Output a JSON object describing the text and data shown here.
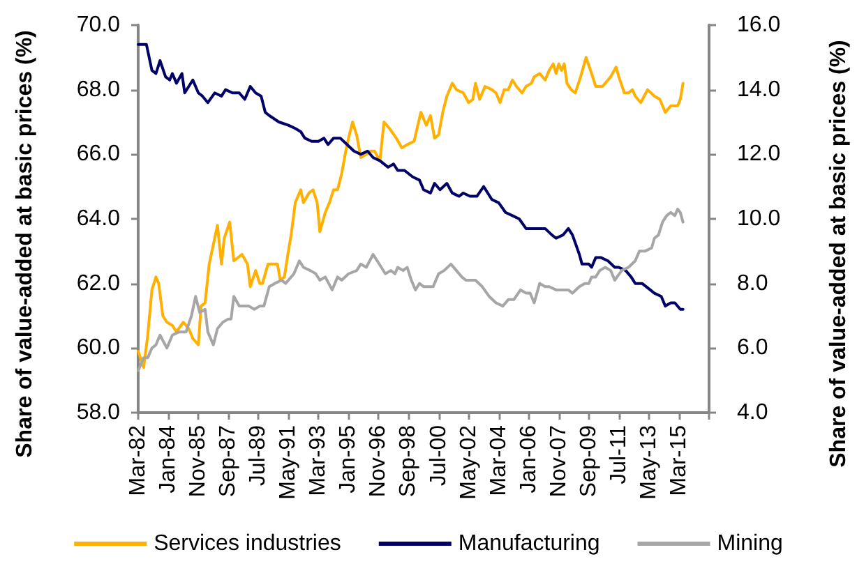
{
  "chart_data": {
    "type": "line",
    "ylabel": "Share of value-added at basic prices (%)",
    "y2label": "Share of value-added at basic prices (%)",
    "xlim": [
      "1982-03",
      "2017-01"
    ],
    "xticks": [
      {
        "value": "1982-03",
        "label": "Mar-82"
      },
      {
        "value": "1984-01",
        "label": "Jan-84"
      },
      {
        "value": "1985-11",
        "label": "Nov-85"
      },
      {
        "value": "1987-09",
        "label": "Sep-87"
      },
      {
        "value": "1989-07",
        "label": "Jul-89"
      },
      {
        "value": "1991-05",
        "label": "May-91"
      },
      {
        "value": "1993-03",
        "label": "Mar-93"
      },
      {
        "value": "1995-01",
        "label": "Jan-95"
      },
      {
        "value": "1996-11",
        "label": "Nov-96"
      },
      {
        "value": "1998-09",
        "label": "Sep-98"
      },
      {
        "value": "2000-07",
        "label": "Jul-00"
      },
      {
        "value": "2002-05",
        "label": "May-02"
      },
      {
        "value": "2004-03",
        "label": "Mar-04"
      },
      {
        "value": "2006-01",
        "label": "Jan-06"
      },
      {
        "value": "2007-11",
        "label": "Nov-07"
      },
      {
        "value": "2009-09",
        "label": "Sep-09"
      },
      {
        "value": "2011-07",
        "label": "Jul-11"
      },
      {
        "value": "2013-05",
        "label": "May-13"
      },
      {
        "value": "2015-03",
        "label": "Mar-15"
      },
      {
        "value": "2017-01",
        "label": null
      }
    ],
    "ylim": [
      58,
      70
    ],
    "yticks": [
      {
        "value": 58,
        "label": "58.0"
      },
      {
        "value": 60,
        "label": "60.0"
      },
      {
        "value": 62,
        "label": "62.0"
      },
      {
        "value": 64,
        "label": "64.0"
      },
      {
        "value": 66,
        "label": "66.0"
      },
      {
        "value": 68,
        "label": "68.0"
      },
      {
        "value": 70,
        "label": "70.0"
      }
    ],
    "y2lim": [
      4,
      16
    ],
    "y2ticks": [
      {
        "value": 4,
        "label": "4.0"
      },
      {
        "value": 6,
        "label": "6.0"
      },
      {
        "value": 8,
        "label": "8.0"
      },
      {
        "value": 10,
        "label": "10.0"
      },
      {
        "value": 12,
        "label": "12.0"
      },
      {
        "value": 14,
        "label": "14.0"
      },
      {
        "value": 16,
        "label": "16.0"
      }
    ],
    "legend": "bottom",
    "series": [
      {
        "name": "Services industries",
        "color": "#ffb000",
        "x": [
          "1982-03",
          "1982-07",
          "1982-10",
          "1983-01",
          "1983-04",
          "1983-06",
          "1983-09",
          "1983-12",
          "1984-04",
          "1984-07",
          "1984-12",
          "1985-04",
          "1985-07",
          "1985-11",
          "1986-01",
          "1986-04",
          "1986-07",
          "1986-10",
          "1987-01",
          "1987-04",
          "1987-06",
          "1987-10",
          "1988-01",
          "1988-07",
          "1988-11",
          "1989-01",
          "1989-05",
          "1989-08",
          "1989-10",
          "1990-02",
          "1990-05",
          "1990-09",
          "1990-11",
          "1991-02",
          "1991-05",
          "1991-07",
          "1991-10",
          "1992-02",
          "1992-04",
          "1992-08",
          "1992-11",
          "1993-02",
          "1993-04",
          "1993-08",
          "1993-11",
          "1994-02",
          "1994-05",
          "1994-08",
          "1994-11",
          "1995-01",
          "1995-04",
          "1995-07",
          "1995-10",
          "1996-02",
          "1996-05",
          "1996-08",
          "1996-12",
          "1997-03",
          "1997-07",
          "1997-12",
          "1998-04",
          "1998-08",
          "1999-01",
          "1999-06",
          "1999-10",
          "2000-01",
          "2000-04",
          "2000-07",
          "2000-10",
          "2001-01",
          "2001-05",
          "2001-08",
          "2002-01",
          "2002-05",
          "2002-08",
          "2002-10",
          "2003-01",
          "2003-05",
          "2003-10",
          "2004-01",
          "2004-04",
          "2004-07",
          "2004-10",
          "2005-01",
          "2005-04",
          "2005-08",
          "2005-11",
          "2006-03",
          "2006-05",
          "2006-09",
          "2007-01",
          "2007-04",
          "2007-07",
          "2007-09",
          "2007-11",
          "2008-01",
          "2008-03",
          "2008-05",
          "2008-08",
          "2008-11",
          "2009-03",
          "2009-07",
          "2009-11",
          "2010-02",
          "2010-07",
          "2011-01",
          "2011-05",
          "2011-07",
          "2011-11",
          "2012-02",
          "2012-05",
          "2012-07",
          "2012-11",
          "2013-04",
          "2013-09",
          "2014-01",
          "2014-05",
          "2014-09",
          "2015-02",
          "2015-04",
          "2015-06"
        ],
        "values": [
          59.9,
          59.4,
          60.4,
          61.8,
          62.2,
          62.0,
          61.0,
          60.8,
          60.7,
          60.5,
          60.8,
          60.6,
          60.3,
          60.1,
          61.3,
          61.4,
          62.6,
          63.2,
          63.8,
          62.6,
          63.4,
          63.9,
          62.7,
          62.9,
          62.6,
          61.9,
          62.4,
          62.0,
          62.0,
          62.6,
          62.6,
          62.6,
          62.1,
          62.2,
          63.0,
          63.5,
          64.5,
          64.9,
          64.5,
          64.8,
          64.9,
          64.5,
          63.6,
          64.2,
          64.5,
          64.9,
          64.9,
          65.4,
          66.1,
          66.5,
          67.0,
          66.6,
          65.9,
          66.0,
          66.1,
          66.1,
          65.8,
          67.0,
          66.8,
          66.5,
          66.2,
          66.3,
          66.4,
          67.3,
          66.9,
          67.2,
          66.5,
          66.6,
          67.3,
          67.8,
          68.2,
          68.0,
          67.9,
          67.6,
          67.7,
          68.2,
          67.7,
          68.1,
          68.0,
          67.9,
          67.6,
          68.0,
          68.0,
          68.3,
          68.1,
          67.9,
          68.1,
          68.2,
          68.4,
          68.5,
          68.3,
          68.6,
          68.8,
          68.5,
          68.8,
          68.6,
          68.8,
          68.2,
          68.0,
          67.9,
          68.4,
          69.0,
          68.5,
          68.1,
          68.1,
          68.4,
          68.7,
          68.4,
          67.9,
          67.9,
          68.0,
          67.8,
          67.6,
          68.0,
          67.8,
          67.7,
          67.3,
          67.5,
          67.5,
          67.7,
          68.2
        ]
      },
      {
        "name": "Manufacturing",
        "color": "#000066",
        "x": [
          "1982-03",
          "1982-09",
          "1983-01",
          "1983-04",
          "1983-07",
          "1983-11",
          "1984-02",
          "1984-04",
          "1984-07",
          "1984-11",
          "1985-01",
          "1985-07",
          "1985-11",
          "1986-02",
          "1986-06",
          "1986-11",
          "1987-04",
          "1987-07",
          "1987-12",
          "1988-05",
          "1988-09",
          "1989-01",
          "1989-05",
          "1989-09",
          "1989-12",
          "1990-03",
          "1990-10",
          "1991-05",
          "1991-10",
          "1992-02",
          "1992-05",
          "1992-10",
          "1993-03",
          "1993-07",
          "1993-10",
          "1994-02",
          "1994-07",
          "1994-12",
          "1995-05",
          "1995-10",
          "1996-03",
          "1996-07",
          "1996-12",
          "1997-06",
          "1997-10",
          "1998-01",
          "1998-06",
          "1998-12",
          "1999-05",
          "1999-08",
          "2000-01",
          "2000-04",
          "2000-08",
          "2001-01",
          "2001-05",
          "2001-10",
          "2002-01",
          "2002-06",
          "2002-11",
          "2003-04",
          "2003-10",
          "2004-03",
          "2004-08",
          "2005-01",
          "2005-06",
          "2005-11",
          "2006-04",
          "2006-09",
          "2007-01",
          "2007-06",
          "2007-09",
          "2008-02",
          "2008-06",
          "2008-09",
          "2009-02",
          "2009-04",
          "2009-09",
          "2009-11",
          "2010-02",
          "2010-06",
          "2010-11",
          "2011-04",
          "2011-07",
          "2011-12",
          "2012-04",
          "2012-07",
          "2012-12",
          "2013-06",
          "2013-09",
          "2014-02",
          "2014-05",
          "2014-09",
          "2014-12",
          "2015-04",
          "2015-06"
        ],
        "values": [
          69.4,
          69.4,
          68.6,
          68.5,
          68.9,
          68.4,
          68.3,
          68.5,
          68.2,
          68.5,
          67.9,
          68.3,
          67.9,
          67.8,
          67.6,
          67.9,
          67.8,
          68.0,
          67.9,
          67.9,
          67.7,
          68.1,
          67.9,
          67.8,
          67.3,
          67.2,
          67.0,
          66.9,
          66.8,
          66.7,
          66.5,
          66.4,
          66.4,
          66.5,
          66.3,
          66.5,
          66.5,
          66.3,
          66.1,
          66.0,
          66.1,
          65.9,
          65.8,
          65.6,
          65.7,
          65.5,
          65.5,
          65.3,
          65.2,
          64.9,
          64.8,
          65.1,
          64.9,
          65.1,
          64.8,
          64.7,
          64.8,
          64.7,
          64.7,
          65.0,
          64.6,
          64.5,
          64.2,
          64.1,
          64.0,
          63.7,
          63.7,
          63.7,
          63.7,
          63.5,
          63.4,
          63.5,
          63.7,
          63.5,
          62.9,
          62.6,
          62.6,
          62.5,
          62.8,
          62.8,
          62.7,
          62.5,
          62.5,
          62.4,
          62.2,
          62.0,
          62.0,
          61.8,
          61.7,
          61.6,
          61.3,
          61.4,
          61.4,
          61.2,
          61.2
        ]
      },
      {
        "name": "Mining",
        "color": "#a6a6a6",
        "axis": "y2",
        "x": [
          "1982-03",
          "1982-07",
          "1982-10",
          "1983-01",
          "1983-04",
          "1983-07",
          "1983-12",
          "1984-04",
          "1984-09",
          "1985-02",
          "1985-06",
          "1985-09",
          "1985-12",
          "1986-04",
          "1986-06",
          "1986-10",
          "1987-01",
          "1987-05",
          "1987-09",
          "1987-11",
          "1988-01",
          "1988-05",
          "1988-09",
          "1988-12",
          "1989-04",
          "1989-08",
          "1989-11",
          "1990-03",
          "1990-07",
          "1990-12",
          "1991-03",
          "1991-09",
          "1992-01",
          "1992-04",
          "1992-09",
          "1993-01",
          "1993-04",
          "1993-08",
          "1994-01",
          "1994-05",
          "1994-08",
          "1995-01",
          "1995-07",
          "1995-10",
          "1996-02",
          "1996-07",
          "1996-10",
          "1997-01",
          "1997-04",
          "1997-08",
          "1997-11",
          "1998-01",
          "1998-05",
          "1998-08",
          "1998-11",
          "1999-02",
          "1999-05",
          "1999-08",
          "1999-12",
          "2000-03",
          "2000-07",
          "2000-11",
          "2001-04",
          "2001-08",
          "2001-12",
          "2002-03",
          "2002-06",
          "2002-10",
          "2003-03",
          "2003-08",
          "2004-01",
          "2004-06",
          "2004-10",
          "2005-02",
          "2005-07",
          "2005-11",
          "2006-02",
          "2006-05",
          "2006-09",
          "2007-01",
          "2007-04",
          "2007-09",
          "2008-01",
          "2008-06",
          "2008-09",
          "2009-02",
          "2009-06",
          "2009-09",
          "2009-11",
          "2010-02",
          "2010-05",
          "2010-09",
          "2011-01",
          "2011-04",
          "2011-09",
          "2012-02",
          "2012-07",
          "2012-10",
          "2013-02",
          "2013-07",
          "2013-09",
          "2013-12",
          "2014-03",
          "2014-06",
          "2014-09",
          "2014-12",
          "2015-02",
          "2015-04",
          "2015-06"
        ],
        "values": [
          5.3,
          5.7,
          5.7,
          6.0,
          6.1,
          6.4,
          6.0,
          6.4,
          6.5,
          6.5,
          7.0,
          7.6,
          7.1,
          7.2,
          6.5,
          6.1,
          6.6,
          6.8,
          6.9,
          6.9,
          7.6,
          7.3,
          7.3,
          7.3,
          7.2,
          7.3,
          7.3,
          7.9,
          8.0,
          8.1,
          8.0,
          8.3,
          8.7,
          8.5,
          8.4,
          8.3,
          8.1,
          8.2,
          7.8,
          8.2,
          8.1,
          8.3,
          8.4,
          8.6,
          8.5,
          8.9,
          8.7,
          8.5,
          8.3,
          8.4,
          8.3,
          8.5,
          8.4,
          8.5,
          8.1,
          7.8,
          8.0,
          7.9,
          7.9,
          7.9,
          8.3,
          8.4,
          8.6,
          8.4,
          8.2,
          8.1,
          8.1,
          8.1,
          7.9,
          7.6,
          7.4,
          7.3,
          7.5,
          7.5,
          7.8,
          7.7,
          7.7,
          7.4,
          8.0,
          7.9,
          7.9,
          7.8,
          7.8,
          7.8,
          7.7,
          7.9,
          8.0,
          8.0,
          8.2,
          8.2,
          8.4,
          8.5,
          8.4,
          8.1,
          8.4,
          8.5,
          8.7,
          9.0,
          9.0,
          9.1,
          9.4,
          9.5,
          9.9,
          10.1,
          10.2,
          10.1,
          10.3,
          10.2,
          9.9
        ]
      }
    ]
  }
}
